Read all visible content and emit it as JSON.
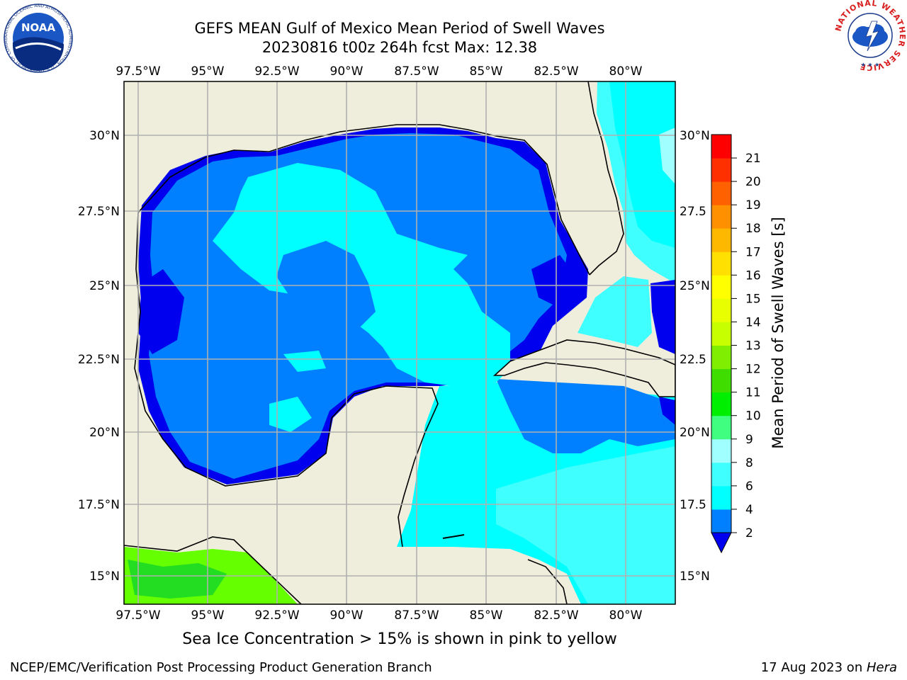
{
  "header": {
    "title_line1": "GEFS MEAN Gulf of Mexico Mean Period of Swell Waves",
    "title_line2": "20230816 t00z 264h fcst   Max: 12.38"
  },
  "logos": {
    "left": "NOAA",
    "left_ring_text": "NATIONAL OCEANIC AND ATMOSPHERIC ADMINISTRATION · U.S. DEPARTMENT OF COMMERCE",
    "right_ring_text": "NATIONAL WEATHER SERVICE"
  },
  "map": {
    "lon_labels": [
      "97.5°W",
      "95°W",
      "92.5°W",
      "90°W",
      "87.5°W",
      "85°W",
      "82.5°W",
      "80°W"
    ],
    "lat_labels_left": [
      "30°N",
      "27.5°N",
      "25°N",
      "22.5°N",
      "20°N",
      "17.5°N",
      "15°N"
    ],
    "lat_labels_right": [
      "30°N",
      "27.5",
      "25°N",
      "22.5",
      "20°N",
      "17.5",
      "15°N"
    ],
    "colors": {
      "land": "#efeedc",
      "grid": "#b0b0b0",
      "c2_4": "#0080ff",
      "c4_6": "#00ffff",
      "c6_8": "#40ffff",
      "c_lt2": "#0000ee",
      "green": "#22dd22",
      "lime": "#66ff00"
    }
  },
  "colorbar": {
    "label": "Mean Period of Swell Waves [s]",
    "ticks": [
      "2",
      "4",
      "6",
      "8",
      "9",
      "10",
      "11",
      "12",
      "13",
      "14",
      "15",
      "16",
      "17",
      "18",
      "19",
      "20",
      "21"
    ],
    "colors": [
      "#0080ff",
      "#00ffff",
      "#40ffff",
      "#a0ffff",
      "#40ff80",
      "#00ee00",
      "#40dd00",
      "#80ee00",
      "#c8ff00",
      "#e8ff00",
      "#ffff00",
      "#ffe000",
      "#ffb800",
      "#ff9000",
      "#ff6000",
      "#ff3000",
      "#ff0000"
    ],
    "under_color": "#0000ee"
  },
  "subcaption": "Sea Ice Concentration > 15% is shown in pink to yellow",
  "footer": {
    "left": "NCEP/EMC/Verification Post Processing Product Generation Branch",
    "right_date": "17 Aug 2023 on ",
    "right_host": "Hera"
  }
}
